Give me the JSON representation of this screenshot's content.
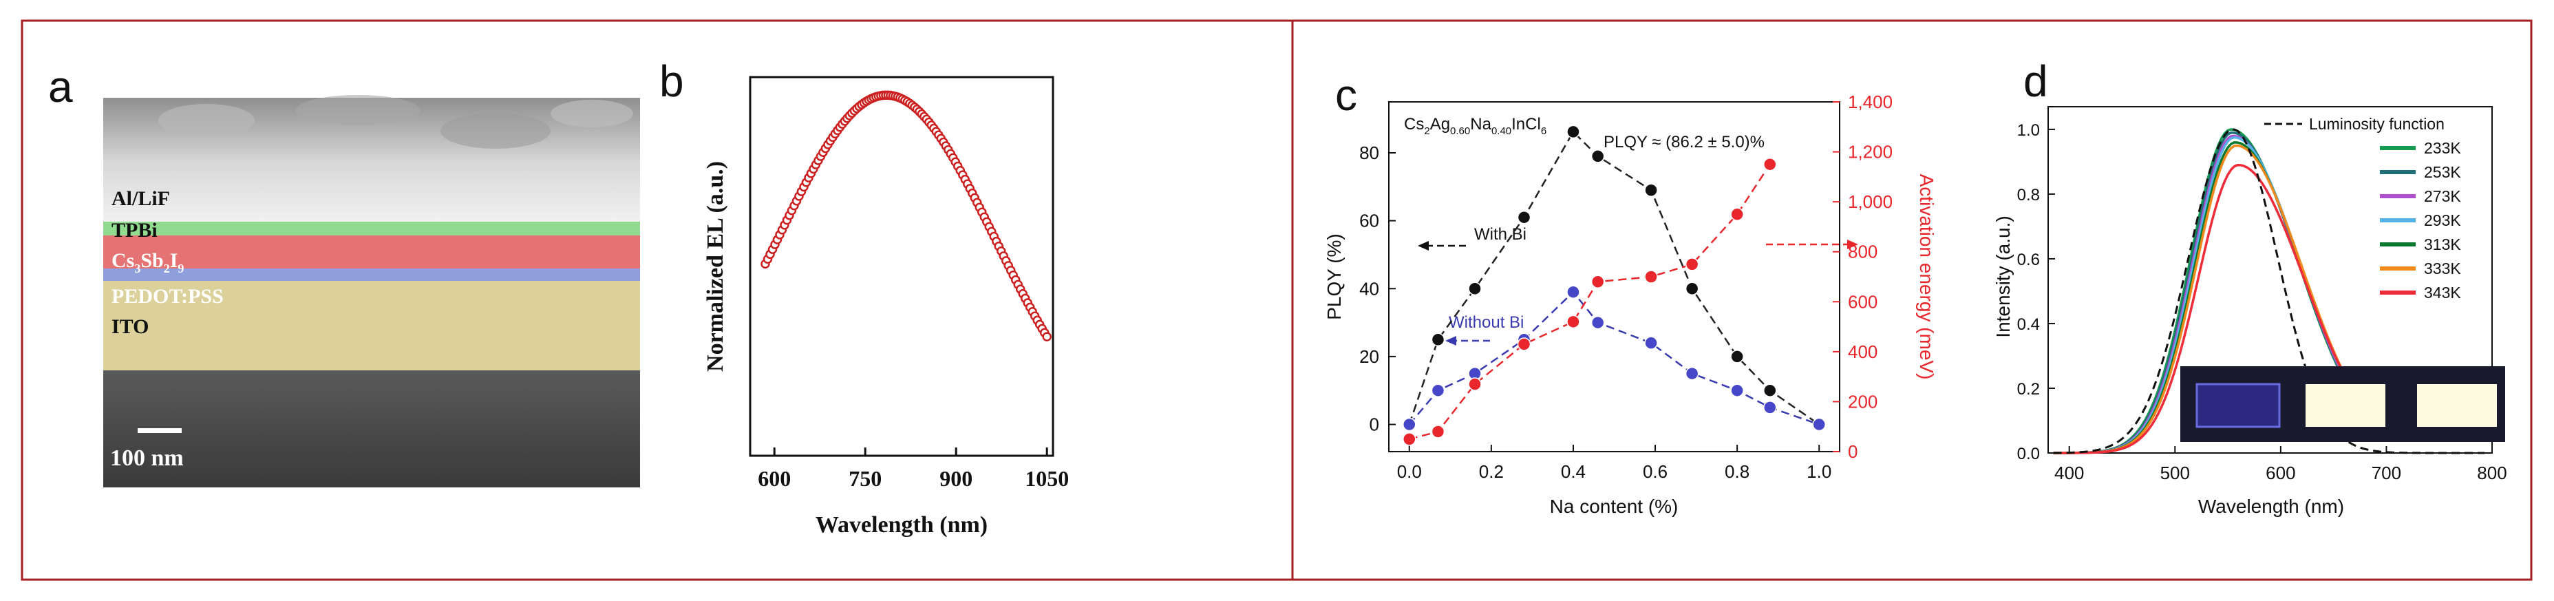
{
  "panels": {
    "a": {
      "letter": "a",
      "layers": [
        "Al/LiF",
        "TPBi",
        "Cs3Sb2I9",
        "PEDOT:PSS",
        "ITO"
      ],
      "formula": {
        "base": "Cs",
        "s1": "3",
        "mid": "Sb",
        "s2": "2",
        "end": "I",
        "s3": "9"
      },
      "scale_bar": "100 nm",
      "colors": {
        "tpbi": "#7fd67f",
        "cs": "#e05a5a",
        "pedot": "#7b8ed6",
        "ito": "#d8cc8f"
      }
    },
    "b": {
      "letter": "b",
      "marker_color": "#cc1f1f"
    },
    "c": {
      "letter": "c",
      "formula": {
        "p1": "Cs",
        "s1": "2",
        "p2": "Ag",
        "s2": "0.60",
        "p3": "Na",
        "s3": "0.40",
        "p4": "InCl",
        "s4": "6"
      },
      "plqy_note": "PLQY ≈ (86.2 ± 5.0)%",
      "with_bi_label": "With Bi",
      "without_bi_label": "Without  Bi",
      "colors": {
        "with_bi": "#222222",
        "without_bi": "#3a3ab0",
        "activation": "#e8262b"
      }
    },
    "d": {
      "letter": "d"
    }
  },
  "chart_data": [
    {
      "id": "b",
      "type": "scatter",
      "title": "",
      "xlabel": "Wavelength (nm)",
      "ylabel": "Normalized EL (a.u.)",
      "xlim": [
        560,
        1060
      ],
      "ylim": [
        0,
        1.05
      ],
      "xticks": [
        600,
        750,
        900,
        1050
      ],
      "xtick_labels": [
        "600",
        "750",
        "900",
        "1050"
      ],
      "series": [
        {
          "name": "EL",
          "peak_nm": 785,
          "sigma_nm": 178,
          "min_nm": 585,
          "max_nm": 1050,
          "points": 118
        }
      ]
    },
    {
      "id": "c",
      "type": "line",
      "title": "",
      "xlabel": "Na content (%)",
      "ylabel_left": "PLQY (%)",
      "ylabel_right": "Activation energy (meV)",
      "xlim": [
        -0.05,
        1.05
      ],
      "ylim_left": [
        -8,
        95
      ],
      "ylim_right": [
        0,
        1400
      ],
      "xticks": [
        0.0,
        0.2,
        0.4,
        0.6,
        0.8,
        1.0
      ],
      "xtick_labels": [
        "0.0",
        "0.2",
        "0.4",
        "0.6",
        "0.8",
        "1.0"
      ],
      "yticks_left": [
        0,
        20,
        40,
        60,
        80
      ],
      "ytick_labels_left": [
        "0",
        "20",
        "40",
        "60",
        "80"
      ],
      "yticks_right": [
        0,
        200,
        400,
        600,
        800,
        1000,
        1200,
        1400
      ],
      "ytick_labels_right": [
        "0",
        "200",
        "400",
        "600",
        "800",
        "1,000",
        "1,200",
        "1,400"
      ],
      "series": [
        {
          "name": "With Bi",
          "axis": "left",
          "x": [
            0.0,
            0.07,
            0.16,
            0.28,
            0.4,
            0.46,
            0.59,
            0.69,
            0.8,
            0.88,
            1.0
          ],
          "y": [
            0,
            25,
            40,
            61,
            86.2,
            79,
            69,
            40,
            20,
            10,
            0
          ]
        },
        {
          "name": "Without Bi",
          "axis": "left",
          "x": [
            0.0,
            0.07,
            0.16,
            0.28,
            0.4,
            0.46,
            0.59,
            0.69,
            0.8,
            0.88,
            1.0
          ],
          "y": [
            0,
            10,
            15,
            25,
            39,
            30,
            24,
            15,
            10,
            5,
            0
          ]
        },
        {
          "name": "Activation energy",
          "axis": "right",
          "x": [
            0.0,
            0.07,
            0.16,
            0.28,
            0.4,
            0.46,
            0.59,
            0.69,
            0.8,
            0.88
          ],
          "y": [
            50,
            80,
            270,
            430,
            520,
            680,
            700,
            750,
            950,
            1150
          ]
        }
      ]
    },
    {
      "id": "d",
      "type": "line",
      "title": "",
      "xlabel": "Wavelength (nm)",
      "ylabel": "Intensity (a.u.)",
      "xlim": [
        380,
        800
      ],
      "ylim": [
        0,
        1.07
      ],
      "xticks": [
        400,
        500,
        600,
        700,
        800
      ],
      "xtick_labels": [
        "400",
        "500",
        "600",
        "700",
        "800"
      ],
      "yticks": [
        0.0,
        0.2,
        0.4,
        0.6,
        0.8,
        1.0
      ],
      "ytick_labels": [
        "0.0",
        "0.2",
        "0.4",
        "0.6",
        "0.8",
        "1.0"
      ],
      "luminosity": {
        "name": "Luminosity function",
        "peak_nm": 555,
        "sigma_nm": 42
      },
      "series": [
        {
          "name": "233K",
          "color": "#159a50",
          "peak": 1.0,
          "peak_nm": 553
        },
        {
          "name": "253K",
          "color": "#1f6e78",
          "peak": 0.99,
          "peak_nm": 554
        },
        {
          "name": "273K",
          "color": "#b04fcf",
          "peak": 0.98,
          "peak_nm": 555
        },
        {
          "name": "293K",
          "color": "#56b3e8",
          "peak": 0.975,
          "peak_nm": 556
        },
        {
          "name": "313K",
          "color": "#0c7a2e",
          "peak": 0.96,
          "peak_nm": 557
        },
        {
          "name": "333K",
          "color": "#f08a1c",
          "peak": 0.95,
          "peak_nm": 558
        },
        {
          "name": "343K",
          "color": "#ee2c3a",
          "peak": 0.89,
          "peak_nm": 560
        }
      ]
    }
  ]
}
